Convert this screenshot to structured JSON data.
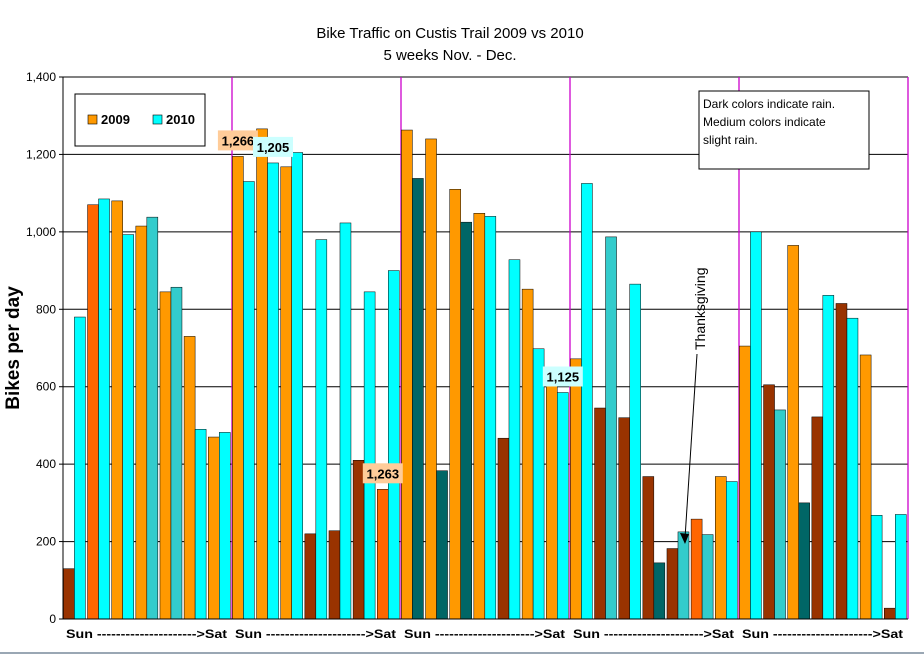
{
  "chart_data": {
    "type": "bar",
    "title": "Bike Traffic on Custis Trail 2009 vs 2010",
    "subtitle": "5 weeks Nov. - Dec.",
    "ylabel": "Bikes per day",
    "xlabel": "",
    "ylim": [
      0,
      1400
    ],
    "yticks": [
      0,
      200,
      400,
      600,
      800,
      1000,
      1200,
      1400
    ],
    "ytick_labels": [
      "0",
      "200",
      "400",
      "600",
      "800",
      "1,000",
      "1,200",
      "1,400"
    ],
    "grid": true,
    "legend_position": "top-left",
    "week_labels": [
      "Sun --------------------->Sat",
      "Sun --------------------->Sat",
      "Sun --------------------->Sat",
      "Sun --------------------->Sat",
      "Sun --------------------->Sat"
    ],
    "series": [
      {
        "name": "2009",
        "color": "#FF9900",
        "values": [
          130,
          1070,
          1080,
          1015,
          845,
          730,
          470,
          1195,
          1266,
          1168,
          220,
          228,
          410,
          335,
          1263,
          1240,
          1110,
          1048,
          467,
          852,
          626,
          672,
          545,
          520,
          368,
          182,
          258,
          368,
          705,
          605,
          965,
          522,
          815,
          682,
          28
        ],
        "rain": [
          "dark",
          "medium",
          "none",
          "none",
          "none",
          "none",
          "none",
          "none",
          "none",
          "none",
          "dark",
          "dark",
          "dark",
          "medium",
          "none",
          "none",
          "none",
          "none",
          "dark",
          "none",
          "none",
          "none",
          "dark",
          "dark",
          "dark",
          "dark",
          "medium",
          "none",
          "none",
          "dark",
          "none",
          "dark",
          "dark",
          "none",
          "dark"
        ]
      },
      {
        "name": "2010",
        "color": "#00FFFF",
        "values": [
          780,
          1085,
          993,
          1038,
          857,
          490,
          482,
          1130,
          1178,
          1205,
          980,
          1023,
          845,
          900,
          1138,
          383,
          1025,
          1040,
          928,
          698,
          585,
          1125,
          987,
          865,
          145,
          225,
          218,
          355,
          1000,
          540,
          300,
          836,
          777,
          268,
          270
        ],
        "rain": [
          "none",
          "none",
          "none",
          "medium",
          "medium",
          "none",
          "none",
          "none",
          "none",
          "none",
          "none",
          "none",
          "none",
          "none",
          "dark",
          "dark",
          "dark",
          "none",
          "none",
          "none",
          "none",
          "none",
          "medium",
          "none",
          "dark",
          "medium",
          "medium",
          "none",
          "none",
          "medium",
          "dark",
          "none",
          "none",
          "none",
          "none"
        ]
      }
    ],
    "palette": {
      "2009_none": "#FF9900",
      "2009_medium": "#FF6600",
      "2009_dark": "#993300",
      "2010_none": "#00FFFF",
      "2010_medium": "#33CCCC",
      "2010_dark": "#006666",
      "week_divider": "#CC00CC",
      "callout_2009": "#FFCC99",
      "callout_2010": "#CCFFFF"
    },
    "callouts": [
      {
        "text": "1,266",
        "series": "2009",
        "day": 8
      },
      {
        "text": "1,205",
        "series": "2010",
        "day": 9
      },
      {
        "text": "1,263",
        "series": "2009",
        "day": 14
      },
      {
        "text": "1,125",
        "series": "2010",
        "day": 21
      }
    ],
    "note_lines": [
      "Dark colors indicate rain.",
      "Medium colors indicate",
      "slight rain."
    ],
    "annotation": {
      "text": "Thanksgiving",
      "series": "2009",
      "day": 25
    }
  }
}
